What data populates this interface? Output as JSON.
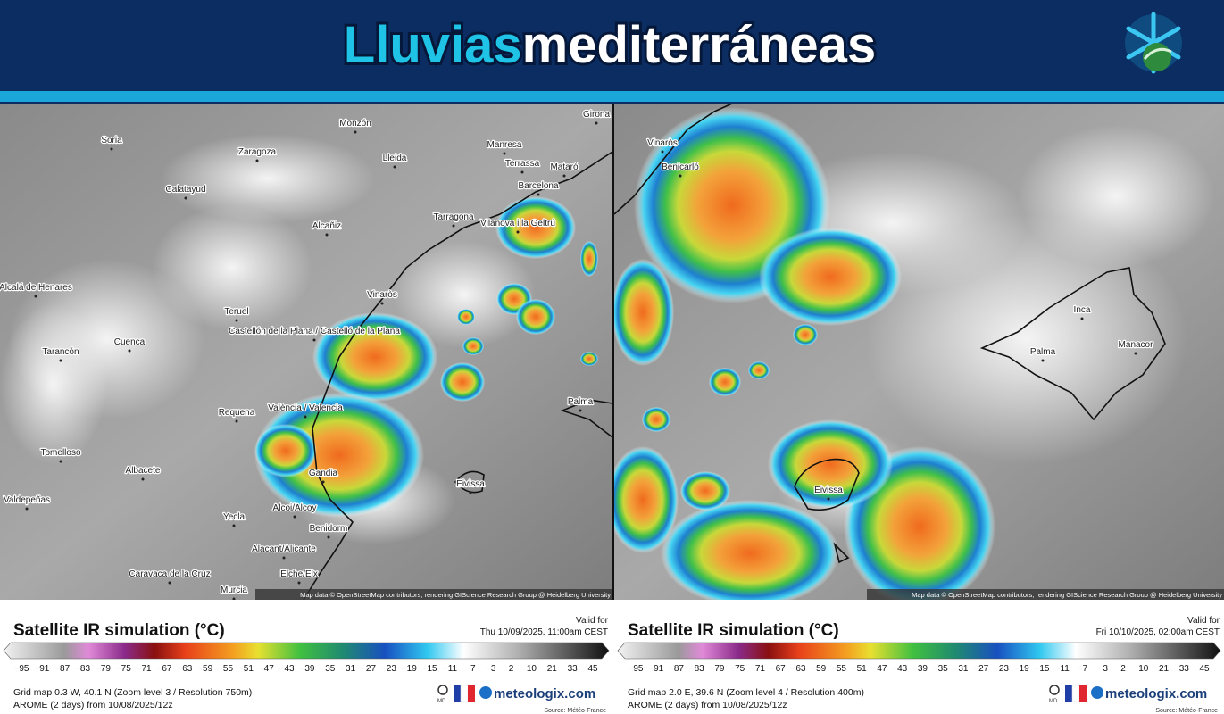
{
  "header": {
    "title_part1": "Lluvias",
    "title_part2": "mediterráneas"
  },
  "panels": [
    {
      "cities": [
        "Girona",
        "Monzón",
        "Soria",
        "Zaragoza",
        "Lleida",
        "Manresa",
        "Terrassa",
        "Mataró",
        "Barcelona",
        "Calatayud",
        "Tarragona",
        "Vilanova i la Geltrú",
        "Alcañiz",
        "Alcalá de Henares",
        "Teruel",
        "Vinaròs",
        "Castellón de la Plana / Castelló de la Plana",
        "Cuenca",
        "Tarancón",
        "Requena",
        "València / Valencia",
        "Palma",
        "Tomelloso",
        "Albacete",
        "Gandia",
        "Eivissa",
        "Valdepeñas",
        "Alcoi/Alcoy",
        "Yecla",
        "Benidorm",
        "Alacant/Alicante",
        "Caravaca de la Cruz",
        "Elche/Elx",
        "Murcia"
      ],
      "attribution": "Map data © OpenStreetMap contributors, rendering GIScience Research Group @ Heidelberg University",
      "legend_title": "Satellite IR simulation (°C)",
      "valid_label": "Valid for",
      "valid_time": "Thu 10/09/2025, 11:00am CEST",
      "ticks": [
        "−95",
        "−91",
        "−87",
        "−83",
        "−79",
        "−75",
        "−71",
        "−67",
        "−63",
        "−59",
        "−55",
        "−51",
        "−47",
        "−43",
        "−39",
        "−35",
        "−31",
        "−27",
        "−23",
        "−19",
        "−15",
        "−11",
        "−7",
        "−3",
        "2",
        "10",
        "21",
        "33",
        "45"
      ],
      "grid_info": "Grid map 0.3 W, 40.1 N (Zoom level 3 / Resolution 750m)",
      "model_info": "AROME (2 days) from 10/08/2025/12z",
      "md": "MD",
      "brand": "meteologix.com",
      "source": "Source: Météo-France"
    },
    {
      "cities": [
        "Vinaròs",
        "Benicarló",
        "Inca",
        "Palma",
        "Manacor",
        "Eivissa"
      ],
      "attribution": "Map data © OpenStreetMap contributors, rendering GIScience Research Group @ Heidelberg University",
      "legend_title": "Satellite IR simulation (°C)",
      "valid_label": "Valid for",
      "valid_time": "Fri 10/10/2025, 02:00am CEST",
      "ticks": [
        "−95",
        "−91",
        "−87",
        "−83",
        "−79",
        "−75",
        "−71",
        "−67",
        "−63",
        "−59",
        "−55",
        "−51",
        "−47",
        "−43",
        "−39",
        "−35",
        "−31",
        "−27",
        "−23",
        "−19",
        "−15",
        "−11",
        "−7",
        "−3",
        "2",
        "10",
        "21",
        "33",
        "45"
      ],
      "grid_info": "Grid map 2.0 E, 39.6 N (Zoom level 4 / Resolution 400m)",
      "model_info": "AROME (2 days) from 10/08/2025/12z",
      "md": "MD",
      "brand": "meteologix.com",
      "source": "Source: Météo-France"
    }
  ]
}
